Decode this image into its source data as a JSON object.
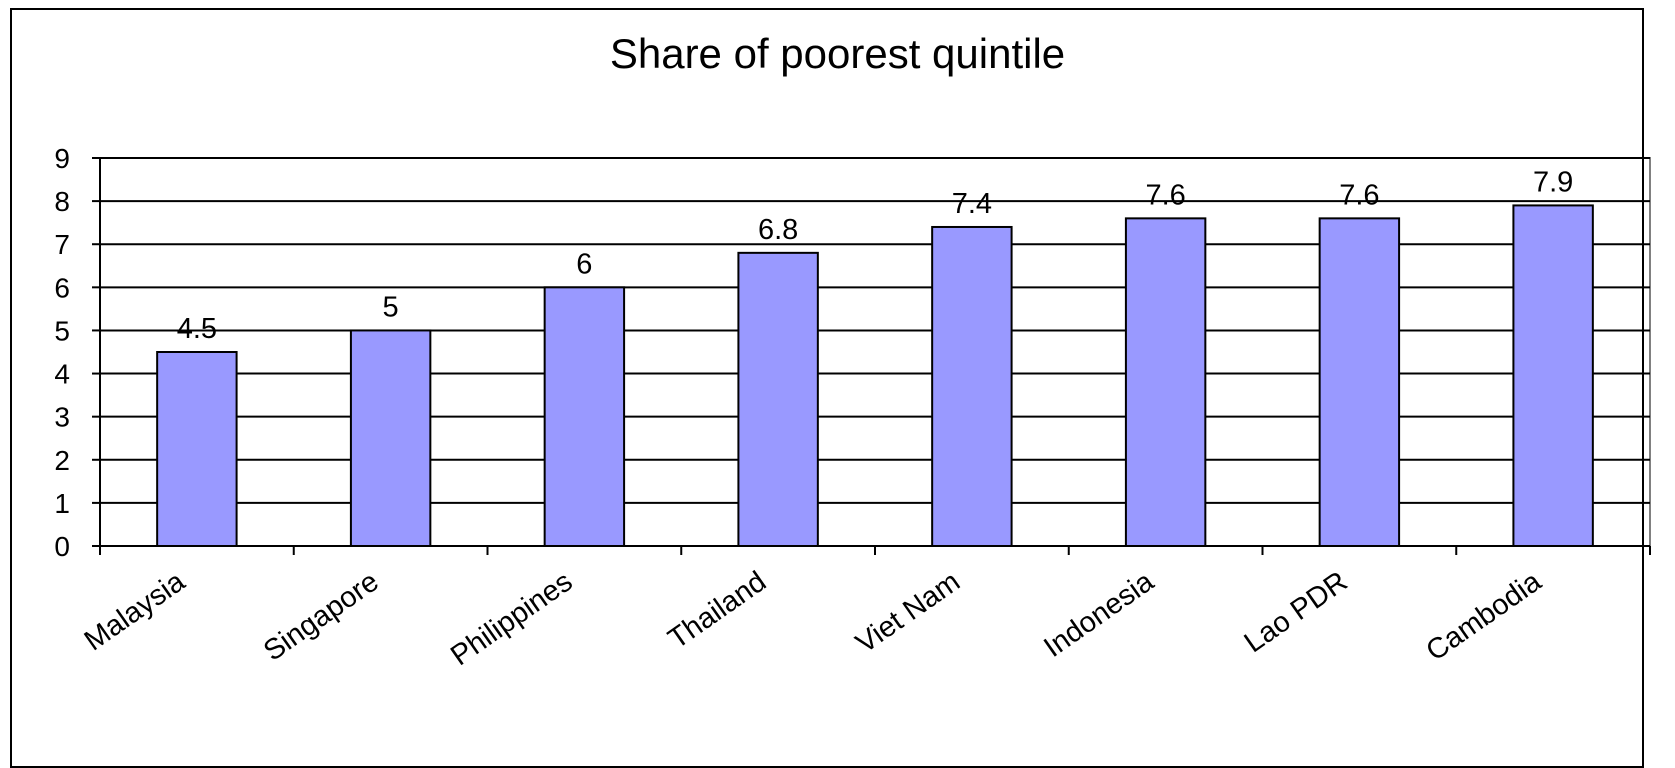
{
  "chart_data": {
    "type": "bar",
    "title": "Share of poorest quintile",
    "categories": [
      "Malaysia",
      "Singapore",
      "Philippines",
      "Thailand",
      "Viet Nam",
      "Indonesia",
      "Lao PDR",
      "Cambodia"
    ],
    "values": [
      4.5,
      5,
      6,
      6.8,
      7.4,
      7.6,
      7.6,
      7.9
    ],
    "data_labels": [
      "4.5",
      "5",
      "6",
      "6.8",
      "7.4",
      "7.6",
      "7.6",
      "7.9"
    ],
    "y_ticks": [
      "0",
      "1",
      "2",
      "3",
      "4",
      "5",
      "6",
      "7",
      "8",
      "9"
    ],
    "ylim": [
      0,
      9
    ],
    "xlabel": "",
    "ylabel": "",
    "grid": true,
    "legend": "none",
    "bar_color": "#9999ff",
    "bar_edge_color": "#000000"
  }
}
